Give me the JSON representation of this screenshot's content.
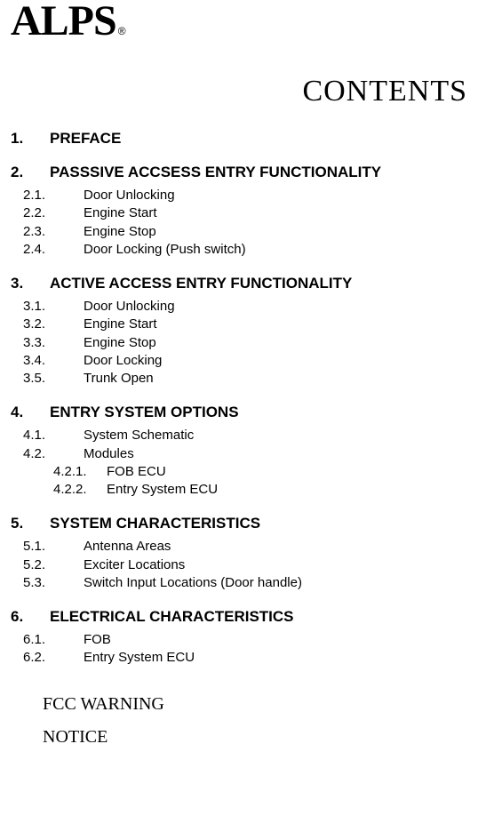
{
  "logo": {
    "text": "ALPS",
    "registered": "®"
  },
  "title": "CONTENTS",
  "sections": [
    {
      "num": "1.",
      "title": "PREFACE",
      "items": []
    },
    {
      "num": "2.",
      "title": "PASSSIVE ACCSESS ENTRY FUNCTIONALITY",
      "items": [
        {
          "num": "2.1.",
          "title": "Door Unlocking"
        },
        {
          "num": "2.2.",
          "title": "Engine Start"
        },
        {
          "num": "2.3.",
          "title": "Engine Stop"
        },
        {
          "num": "2.4.",
          "title": "Door Locking (Push switch)"
        }
      ]
    },
    {
      "num": "3.",
      "title": "ACTIVE ACCESS ENTRY FUNCTIONALITY",
      "items": [
        {
          "num": "3.1.",
          "title": "Door Unlocking"
        },
        {
          "num": "3.2.",
          "title": "Engine Start"
        },
        {
          "num": "3.3.",
          "title": "Engine Stop"
        },
        {
          "num": "3.4.",
          "title": "Door Locking"
        },
        {
          "num": "3.5.",
          "title": "Trunk Open"
        }
      ]
    },
    {
      "num": "4.",
      "title": "ENTRY SYSTEM OPTIONS",
      "items": [
        {
          "num": "4.1.",
          "title": "System Schematic"
        },
        {
          "num": "4.2.",
          "title": "Modules",
          "items": [
            {
              "num": "4.2.1.",
              "title": "FOB ECU"
            },
            {
              "num": "4.2.2.",
              "title": "Entry System ECU"
            }
          ]
        }
      ]
    },
    {
      "num": "5.",
      "title": "SYSTEM CHARACTERISTICS",
      "items": [
        {
          "num": "5.1.",
          "title": "Antenna Areas"
        },
        {
          "num": "5.2.",
          "title": "Exciter Locations"
        },
        {
          "num": "5.3.",
          "title": "Switch Input Locations (Door handle)"
        }
      ]
    },
    {
      "num": "6.",
      "title": "ELECTRICAL CHARACTERISTICS",
      "items": [
        {
          "num": "6.1.",
          "title": "FOB"
        },
        {
          "num": "6.2.",
          "title": "Entry System ECU"
        }
      ]
    }
  ],
  "footer": {
    "line1": "FCC WARNING",
    "line2": "NOTICE"
  }
}
